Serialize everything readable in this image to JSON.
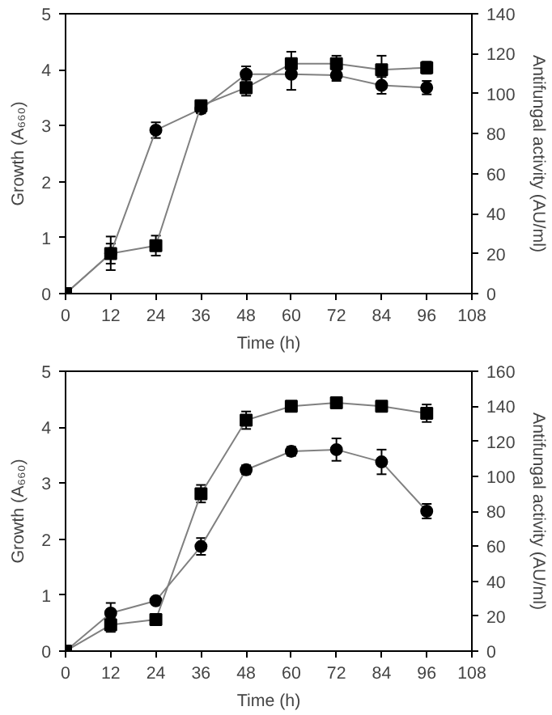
{
  "chart_data": [
    {
      "type": "line",
      "xlabel": "Time (h)",
      "ylabel": "Growth (A₆₆₀)",
      "y2label": "Antifungal activity (AU/ml)",
      "x": [
        0,
        12,
        24,
        36,
        48,
        60,
        72,
        84,
        96
      ],
      "xlim": [
        0,
        108
      ],
      "xticks": [
        0,
        12,
        24,
        36,
        48,
        60,
        72,
        84,
        96,
        108
      ],
      "ylim": [
        0,
        5
      ],
      "yticks": [
        0,
        1,
        2,
        3,
        4,
        5
      ],
      "y2lim": [
        0,
        140
      ],
      "y2ticks": [
        0,
        20,
        40,
        60,
        80,
        100,
        120,
        140
      ],
      "grid": false,
      "line_style": "solid",
      "series": [
        {
          "color": "#000000",
          "marker": "circle",
          "values": [
            0,
            0.72,
            2.92,
            3.3,
            3.92,
            3.92,
            3.9,
            3.72,
            3.68
          ],
          "errors": [
            null,
            0.3,
            0.14,
            0.08,
            0.14,
            0.28,
            0.1,
            0.15,
            0.12
          ]
        },
        {
          "color": "#000000",
          "marker": "square",
          "axis": "y2",
          "values": [
            0,
            20,
            24,
            94,
            103,
            115,
            115,
            112,
            113
          ],
          "errors": [
            null,
            5,
            5,
            2,
            4,
            6,
            4,
            7,
            3
          ]
        }
      ]
    },
    {
      "type": "line",
      "xlabel": "Time (h)",
      "ylabel": "Growth (A₆₆₀)",
      "y2label": "Antifungal activity (AU/ml)",
      "x": [
        0,
        12,
        24,
        36,
        48,
        60,
        72,
        84,
        96
      ],
      "xlim": [
        0,
        108
      ],
      "xticks": [
        0,
        12,
        24,
        36,
        48,
        60,
        72,
        84,
        96,
        108
      ],
      "ylim": [
        0,
        5
      ],
      "yticks": [
        0,
        1,
        2,
        3,
        4,
        5
      ],
      "y2lim": [
        0,
        160
      ],
      "y2ticks": [
        0,
        20,
        40,
        60,
        80,
        100,
        120,
        140,
        160
      ],
      "grid": false,
      "line_style": "solid",
      "series": [
        {
          "color": "#000000",
          "marker": "circle",
          "values": [
            0,
            0.68,
            0.9,
            1.87,
            3.24,
            3.57,
            3.6,
            3.38,
            2.5
          ],
          "errors": [
            null,
            0.18,
            0.03,
            0.15,
            0.08,
            0.08,
            0.2,
            0.22,
            0.13
          ]
        },
        {
          "color": "#000000",
          "marker": "square",
          "axis": "y2",
          "values": [
            0,
            15,
            18,
            90,
            132,
            140,
            142,
            140,
            136
          ],
          "errors": [
            null,
            4,
            1,
            5,
            5,
            1,
            2,
            1,
            5
          ]
        }
      ]
    }
  ]
}
